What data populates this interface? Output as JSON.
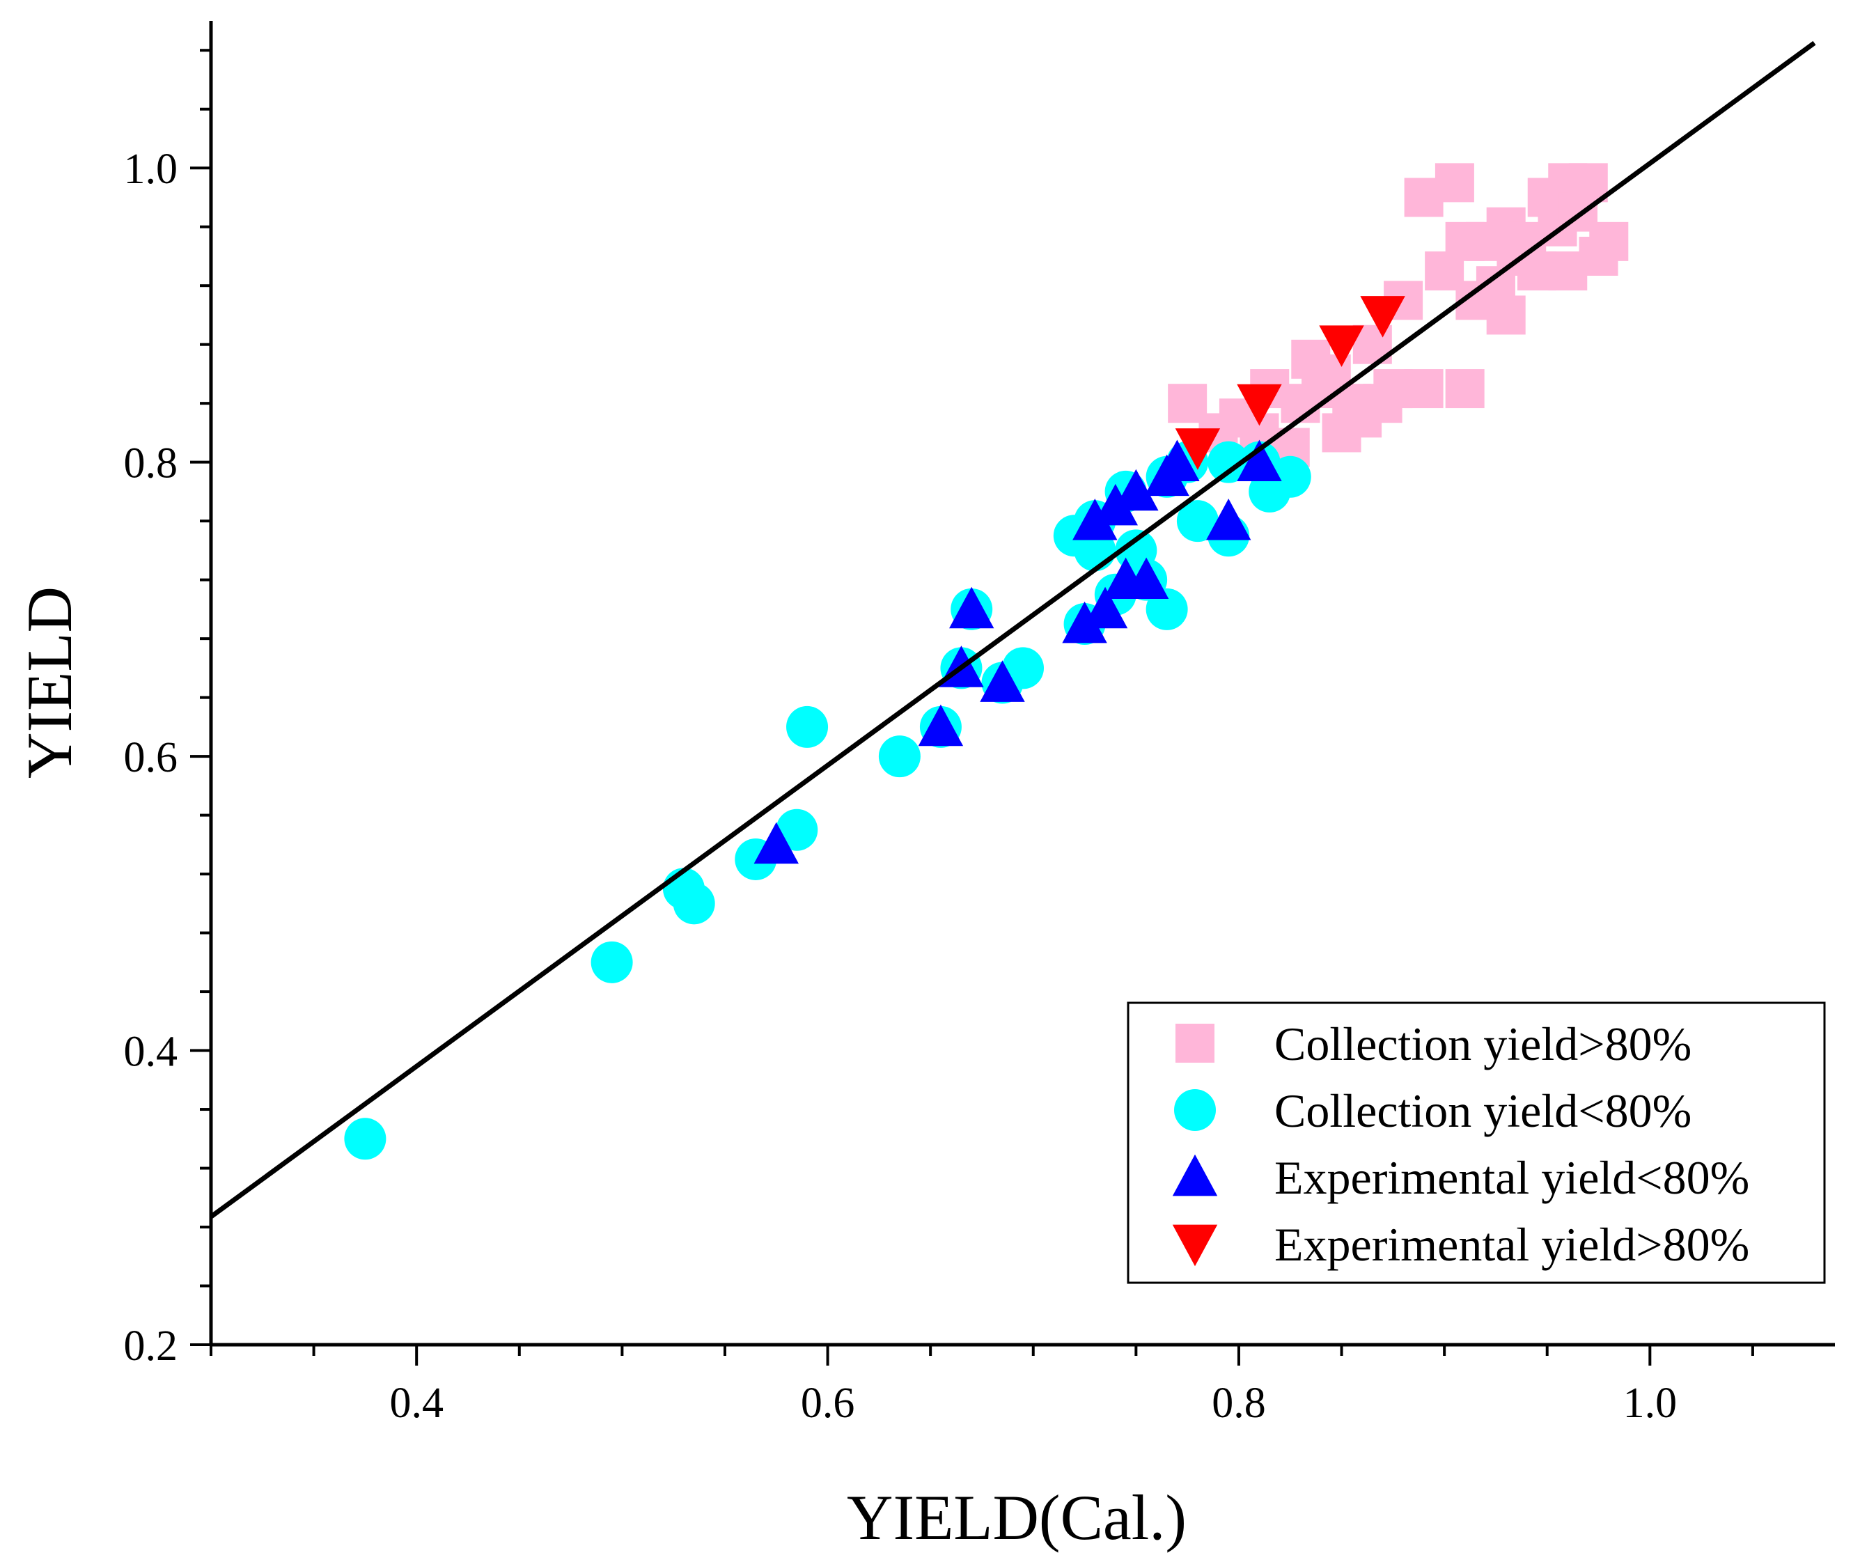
{
  "chart_data": {
    "type": "scatter",
    "title": "",
    "xlabel": "YIELD(Cal.)",
    "ylabel": "YIELD",
    "xlim": [
      0.3,
      1.09
    ],
    "ylim": [
      0.2,
      1.1
    ],
    "x_ticks": [
      {
        "value": 0.4,
        "label": "0.4"
      },
      {
        "value": 0.6,
        "label": "0.6"
      },
      {
        "value": 0.8,
        "label": "0.8"
      },
      {
        "value": 1.0,
        "label": "1.0"
      }
    ],
    "y_ticks": [
      {
        "value": 0.2,
        "label": "0.2"
      },
      {
        "value": 0.4,
        "label": "0.4"
      },
      {
        "value": 0.6,
        "label": "0.6"
      },
      {
        "value": 0.8,
        "label": "0.8"
      },
      {
        "value": 1.0,
        "label": "1.0"
      }
    ],
    "grid": false,
    "legend_position": "bottom-right",
    "fit_line": {
      "x": [
        0.3,
        1.08
      ],
      "y": [
        0.287,
        1.085
      ],
      "color": "#000000"
    },
    "series": [
      {
        "name": "Collection yield>80%",
        "marker": "square",
        "color": "#ffb6d9",
        "points": [
          [
            0.775,
            0.84
          ],
          [
            0.79,
            0.82
          ],
          [
            0.8,
            0.83
          ],
          [
            0.81,
            0.82
          ],
          [
            0.815,
            0.85
          ],
          [
            0.825,
            0.81
          ],
          [
            0.83,
            0.84
          ],
          [
            0.835,
            0.87
          ],
          [
            0.84,
            0.85
          ],
          [
            0.845,
            0.86
          ],
          [
            0.85,
            0.82
          ],
          [
            0.855,
            0.84
          ],
          [
            0.86,
            0.83
          ],
          [
            0.865,
            0.88
          ],
          [
            0.87,
            0.84
          ],
          [
            0.875,
            0.85
          ],
          [
            0.88,
            0.91
          ],
          [
            0.89,
            0.85
          ],
          [
            0.89,
            0.98
          ],
          [
            0.9,
            0.93
          ],
          [
            0.905,
            0.99
          ],
          [
            0.91,
            0.95
          ],
          [
            0.91,
            0.85
          ],
          [
            0.915,
            0.91
          ],
          [
            0.92,
            0.95
          ],
          [
            0.925,
            0.92
          ],
          [
            0.93,
            0.96
          ],
          [
            0.93,
            0.9
          ],
          [
            0.935,
            0.94
          ],
          [
            0.94,
            0.95
          ],
          [
            0.945,
            0.93
          ],
          [
            0.95,
            0.98
          ],
          [
            0.955,
            0.96
          ],
          [
            0.96,
            0.99
          ],
          [
            0.96,
            0.93
          ],
          [
            0.965,
            0.97
          ],
          [
            0.97,
            0.99
          ],
          [
            0.975,
            0.94
          ],
          [
            0.98,
            0.95
          ]
        ]
      },
      {
        "name": "Collection yield<80%",
        "marker": "circle",
        "color": "#00ffff",
        "points": [
          [
            0.375,
            0.34
          ],
          [
            0.495,
            0.46
          ],
          [
            0.53,
            0.51
          ],
          [
            0.535,
            0.5
          ],
          [
            0.565,
            0.53
          ],
          [
            0.585,
            0.55
          ],
          [
            0.59,
            0.62
          ],
          [
            0.635,
            0.6
          ],
          [
            0.655,
            0.62
          ],
          [
            0.665,
            0.66
          ],
          [
            0.67,
            0.7
          ],
          [
            0.685,
            0.65
          ],
          [
            0.695,
            0.66
          ],
          [
            0.72,
            0.75
          ],
          [
            0.725,
            0.69
          ],
          [
            0.73,
            0.74
          ],
          [
            0.73,
            0.76
          ],
          [
            0.74,
            0.71
          ],
          [
            0.745,
            0.78
          ],
          [
            0.75,
            0.74
          ],
          [
            0.755,
            0.72
          ],
          [
            0.765,
            0.7
          ],
          [
            0.765,
            0.79
          ],
          [
            0.775,
            0.8
          ],
          [
            0.78,
            0.76
          ],
          [
            0.795,
            0.75
          ],
          [
            0.795,
            0.8
          ],
          [
            0.815,
            0.78
          ],
          [
            0.825,
            0.79
          ],
          [
            0.81,
            0.8
          ]
        ]
      },
      {
        "name": "Experimental yield<80%",
        "marker": "triangle-up",
        "color": "#0000ff",
        "points": [
          [
            0.575,
            0.54
          ],
          [
            0.655,
            0.62
          ],
          [
            0.665,
            0.66
          ],
          [
            0.67,
            0.7
          ],
          [
            0.685,
            0.65
          ],
          [
            0.725,
            0.69
          ],
          [
            0.73,
            0.76
          ],
          [
            0.735,
            0.7
          ],
          [
            0.74,
            0.77
          ],
          [
            0.745,
            0.72
          ],
          [
            0.75,
            0.78
          ],
          [
            0.755,
            0.72
          ],
          [
            0.765,
            0.79
          ],
          [
            0.77,
            0.8
          ],
          [
            0.795,
            0.76
          ],
          [
            0.81,
            0.8
          ]
        ]
      },
      {
        "name": "Experimental yield>80%",
        "marker": "triangle-down",
        "color": "#ff0000",
        "points": [
          [
            0.78,
            0.81
          ],
          [
            0.81,
            0.84
          ],
          [
            0.85,
            0.88
          ],
          [
            0.87,
            0.9
          ]
        ]
      }
    ]
  }
}
